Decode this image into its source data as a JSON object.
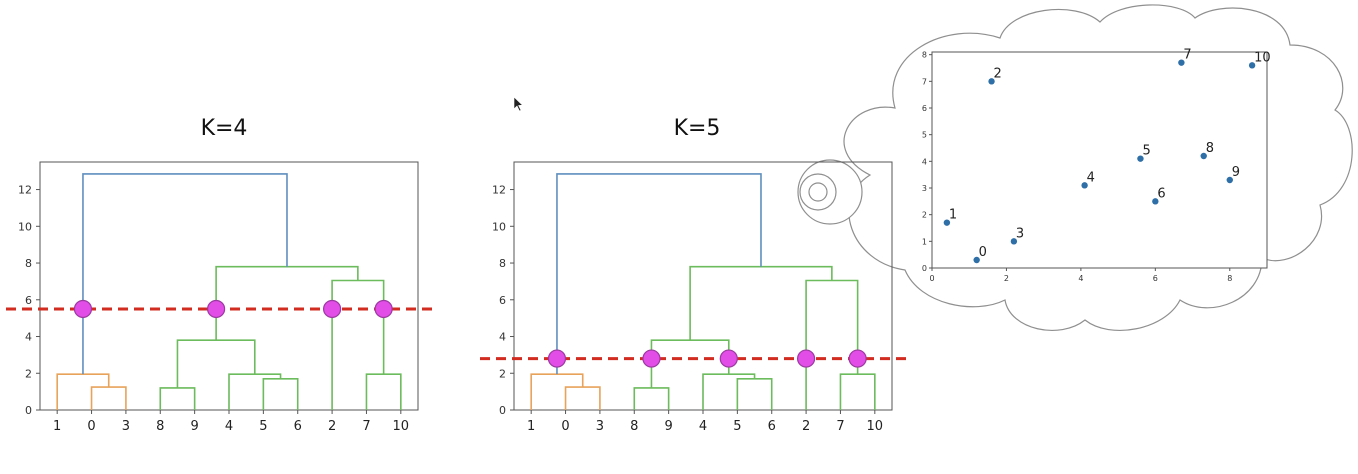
{
  "chart_data": [
    {
      "type": "dendrogram",
      "title": "K=4",
      "leaf_order": [
        "1",
        "0",
        "3",
        "8",
        "9",
        "4",
        "5",
        "6",
        "2",
        "7",
        "10"
      ],
      "ylim": [
        0,
        13.5
      ],
      "yticks": [
        0,
        2,
        4,
        6,
        8,
        10,
        12
      ],
      "links": [
        {
          "a": "1",
          "b": "3",
          "ha": 0,
          "hb": 1.25,
          "h": 1.25,
          "color": "#e8a25a"
        },
        {
          "a": "1",
          "b": "3",
          "ha": 0,
          "hb": 1.25,
          "h": 1.95,
          "color": "#e8a25a",
          "left_leaf": "1",
          "right_span": [
            "0",
            "3"
          ]
        },
        {
          "a": "8",
          "b": "9",
          "ha": 0,
          "hb": 0,
          "h": 1.2,
          "color": "#6cbb5c"
        },
        {
          "a": "5",
          "b": "6",
          "ha": 0,
          "hb": 0,
          "h": 1.7,
          "color": "#6cbb5c"
        },
        {
          "a": "4",
          "b": "56",
          "ha": 0,
          "hb": 1.7,
          "h": 1.95,
          "color": "#6cbb5c"
        },
        {
          "a": "89",
          "b": "456",
          "ha": 1.2,
          "hb": 1.95,
          "h": 3.8,
          "color": "#6cbb5c"
        },
        {
          "a": "7",
          "b": "10",
          "ha": 0,
          "hb": 0,
          "h": 1.95,
          "color": "#6cbb5c"
        },
        {
          "a": "2",
          "b": "710",
          "ha": 0,
          "hb": 1.95,
          "h": 7.05,
          "color": "#6cbb5c"
        },
        {
          "a": "89456",
          "b": "2710",
          "ha": 3.8,
          "hb": 7.05,
          "h": 7.8,
          "color": "#6cbb5c"
        },
        {
          "a": "103",
          "b": "rest",
          "ha": 1.95,
          "hb": 7.8,
          "h": 12.85,
          "color": "#5f8fbf"
        }
      ],
      "cut_height": 5.5,
      "cut_color": "#d22b20",
      "marker_color": "#e14de6"
    },
    {
      "type": "dendrogram",
      "title": "K=5",
      "leaf_order": [
        "1",
        "0",
        "3",
        "8",
        "9",
        "4",
        "5",
        "6",
        "2",
        "7",
        "10"
      ],
      "ylim": [
        0,
        13.5
      ],
      "yticks": [
        0,
        2,
        4,
        6,
        8,
        10,
        12
      ],
      "cut_height": 2.8,
      "cut_color": "#d22b20",
      "marker_color": "#e14de6"
    },
    {
      "type": "scatter",
      "xlim": [
        0,
        9
      ],
      "ylim": [
        0,
        8.1
      ],
      "xticks": [
        0,
        2,
        4,
        6,
        8
      ],
      "yticks": [
        0,
        1,
        2,
        3,
        4,
        5,
        6,
        7,
        8
      ],
      "points": [
        {
          "label": "0",
          "x": 1.2,
          "y": 0.3
        },
        {
          "label": "1",
          "x": 0.4,
          "y": 1.7
        },
        {
          "label": "2",
          "x": 1.6,
          "y": 7.0
        },
        {
          "label": "3",
          "x": 2.2,
          "y": 1.0
        },
        {
          "label": "4",
          "x": 4.1,
          "y": 3.1
        },
        {
          "label": "5",
          "x": 5.6,
          "y": 4.1
        },
        {
          "label": "6",
          "x": 6.0,
          "y": 2.5
        },
        {
          "label": "7",
          "x": 6.7,
          "y": 7.7
        },
        {
          "label": "8",
          "x": 7.3,
          "y": 4.2
        },
        {
          "label": "9",
          "x": 8.0,
          "y": 3.3
        },
        {
          "label": "10",
          "x": 8.6,
          "y": 7.6
        }
      ],
      "point_color": "#2f6fa8"
    }
  ]
}
